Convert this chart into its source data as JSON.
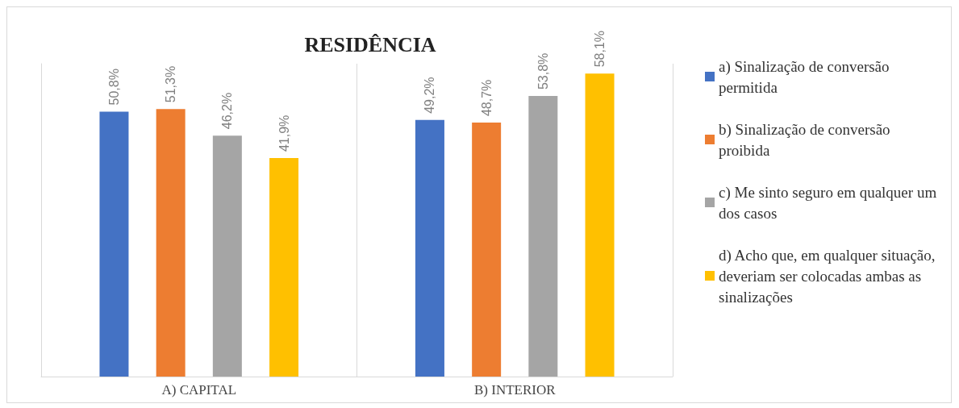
{
  "chart_data": {
    "type": "bar",
    "title": "RESIDÊNCIA",
    "categories": [
      "A) CAPITAL",
      "B) INTERIOR"
    ],
    "series": [
      {
        "name": "a) Sinalização de conversão permitida",
        "color": "#4472c4",
        "values": [
          50.8,
          49.2
        ],
        "value_labels": [
          "50,8%",
          "49,2%"
        ]
      },
      {
        "name": "b) Sinalização de conversão proibida",
        "color": "#ed7d31",
        "values": [
          51.3,
          48.7
        ],
        "value_labels": [
          "51,3%",
          "48,7%"
        ]
      },
      {
        "name": "c) Me sinto seguro em qualquer um dos casos",
        "color": "#a5a5a5",
        "values": [
          46.2,
          53.8
        ],
        "value_labels": [
          "46,2%",
          "53,8%"
        ]
      },
      {
        "name": "d) Acho que, em qualquer situação, deveriam ser colocadas ambas as sinalizações",
        "color": "#ffc000",
        "values": [
          41.9,
          58.1
        ],
        "value_labels": [
          "41,9%",
          "58,1%"
        ]
      }
    ],
    "grid": "x",
    "legend": "right"
  }
}
